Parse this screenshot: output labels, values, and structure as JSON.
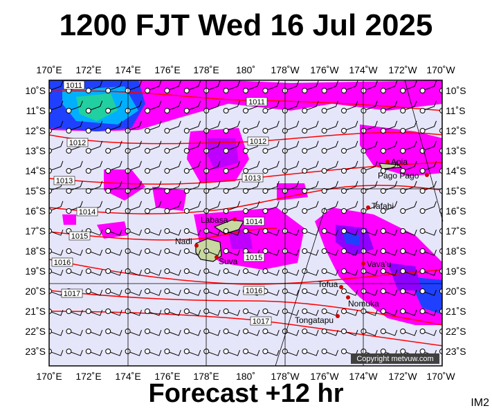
{
  "title": "1200 FJT Wed 16 Jul 2025",
  "footer": "Forecast +12 hr",
  "code": "IM2",
  "copyright": "Copyright metvuw.com",
  "lon_labels": [
    "170˚E",
    "172˚E",
    "174˚E",
    "176˚E",
    "178˚E",
    "180˚",
    "178˚W",
    "176˚W",
    "174˚W",
    "172˚W",
    "170˚W"
  ],
  "lat_labels": [
    "10˚S",
    "11˚S",
    "12˚S",
    "13˚S",
    "14˚S",
    "15˚S",
    "16˚S",
    "17˚S",
    "18˚S",
    "19˚S",
    "20˚S",
    "21˚S",
    "22˚S",
    "23˚S"
  ],
  "isobars": [
    {
      "label": "1011"
    },
    {
      "label": "1011"
    },
    {
      "label": "1012"
    },
    {
      "label": "1012"
    },
    {
      "label": "1013"
    },
    {
      "label": "1013"
    },
    {
      "label": "1014"
    },
    {
      "label": "1014"
    },
    {
      "label": "1015"
    },
    {
      "label": "1015"
    },
    {
      "label": "1016"
    },
    {
      "label": "1016"
    },
    {
      "label": "1017"
    },
    {
      "label": "1017"
    }
  ],
  "places": [
    {
      "name": "Apia"
    },
    {
      "name": "Pago Pago"
    },
    {
      "name": "Tafahi"
    },
    {
      "name": "Labasa"
    },
    {
      "name": "Nadi"
    },
    {
      "name": "Suva"
    },
    {
      "name": "Vava'u"
    },
    {
      "name": "Tofua"
    },
    {
      "name": "Nomuka"
    },
    {
      "name": "Tongatapu"
    }
  ],
  "colors": {
    "ocean": "#e6e6fa",
    "rain": "#ff00ff",
    "rain_mid": "#b400ff",
    "rain_heavy": "#1a3cff",
    "isobar": "#ff0000",
    "land": "#c8d8a0"
  }
}
